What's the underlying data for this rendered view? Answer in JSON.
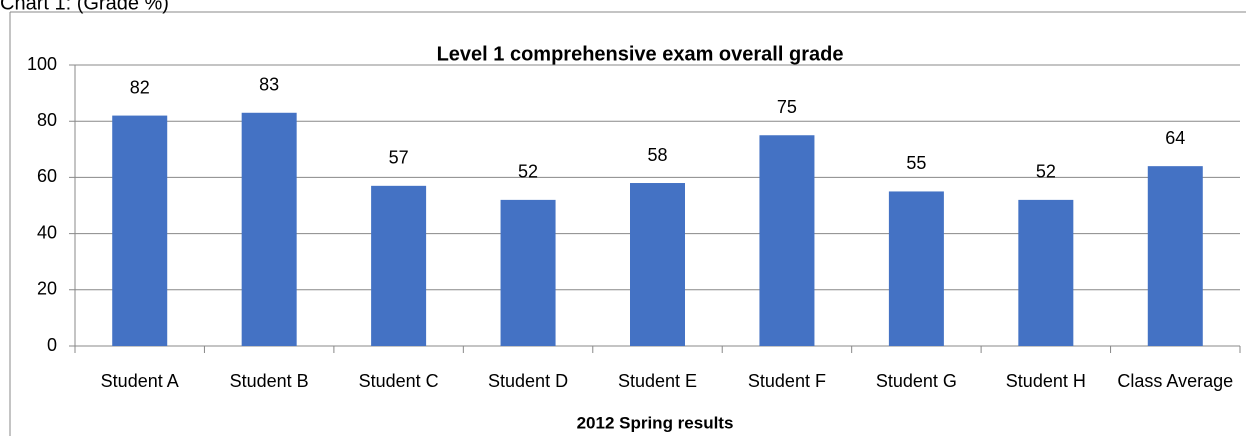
{
  "caption": "Chart 1: (Grade %)",
  "chart_data": {
    "type": "bar",
    "title": "Level 1 comprehensive exam overall grade",
    "x_label": "2012 Spring results",
    "categories": [
      "Student A",
      "Student B",
      "Student C",
      "Student D",
      "Student E",
      "Student F",
      "Student G",
      "Student H",
      "Class Average"
    ],
    "values": [
      82,
      83,
      57,
      52,
      58,
      75,
      55,
      52,
      64
    ],
    "color": "#4472c4",
    "ylim": [
      0,
      100
    ],
    "yticks": [
      0,
      20,
      40,
      60,
      80,
      100
    ],
    "grid": true
  }
}
